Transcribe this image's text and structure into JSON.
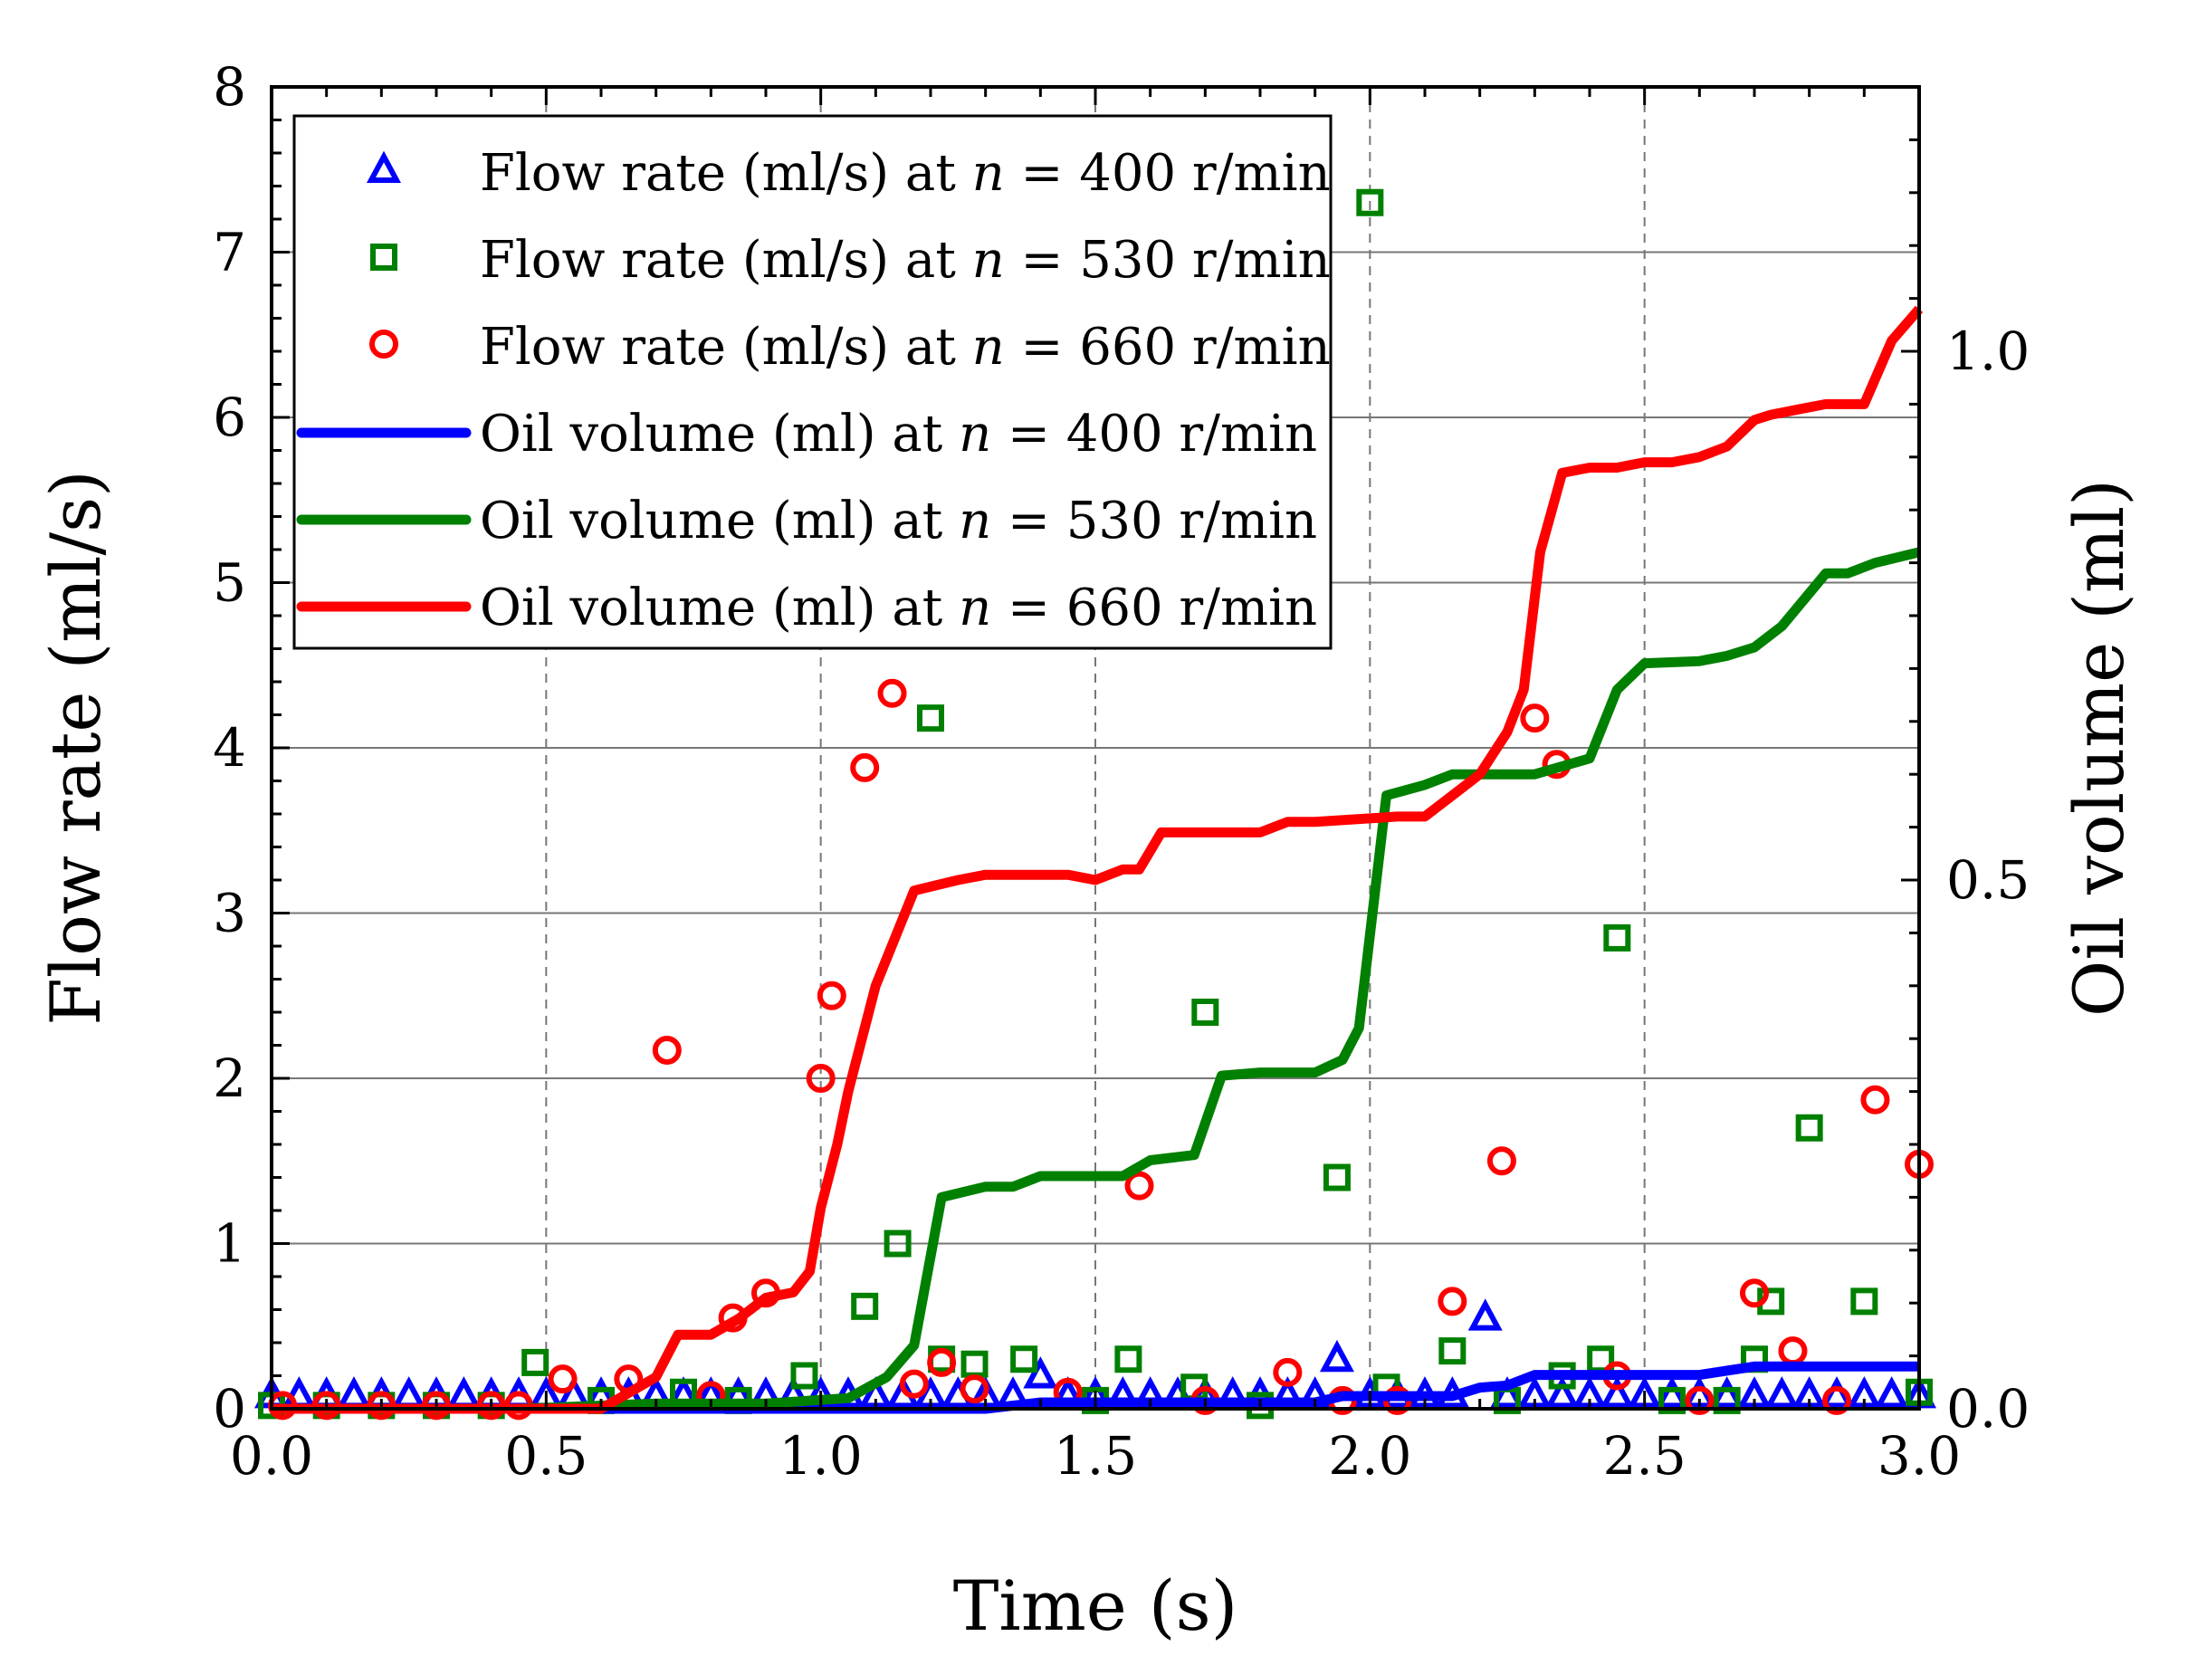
{
  "chart_data": {
    "type": "line",
    "title": "",
    "xlabel": "Time (s)",
    "ylabel": "Flow rate (ml/s)",
    "y2label": "Oil volume (ml)",
    "xlim": [
      0.0,
      3.0
    ],
    "ylim": [
      0,
      8
    ],
    "y2lim": [
      0.0,
      1.25
    ],
    "x_ticks": [
      0.0,
      0.5,
      1.0,
      1.5,
      2.0,
      2.5,
      3.0
    ],
    "x_tick_labels": [
      "0.0",
      "0.5",
      "1.0",
      "1.5",
      "2.0",
      "2.5",
      "3.0"
    ],
    "y_ticks": [
      0,
      1,
      2,
      3,
      4,
      5,
      6,
      7,
      8
    ],
    "y_tick_labels": [
      "0",
      "1",
      "2",
      "3",
      "4",
      "5",
      "6",
      "7",
      "8"
    ],
    "y2_ticks": [
      0.0,
      0.5,
      1.0
    ],
    "y2_tick_labels": [
      "0.0",
      "0.5",
      "1.0"
    ],
    "grid": "vertical dashed at x ticks, horizontal solid at y ticks",
    "legend_position": "top-left",
    "legend": [
      {
        "prefix": "Flow rate (ml/s) at ",
        "var": "n",
        "suffix": " = 400 r/min",
        "marker": "triangle",
        "color": "#0000ff"
      },
      {
        "prefix": "Flow rate (ml/s) at ",
        "var": "n",
        "suffix": " = 530 r/min",
        "marker": "square",
        "color": "#008000"
      },
      {
        "prefix": "Flow rate (ml/s) at ",
        "var": "n",
        "suffix": " = 660 r/min",
        "marker": "circle",
        "color": "#ff0000"
      },
      {
        "prefix": "Oil volume (ml) at ",
        "var": "n",
        "suffix": " = 400 r/min",
        "marker": "line",
        "color": "#0000ff"
      },
      {
        "prefix": "Oil volume (ml) at ",
        "var": "n",
        "suffix": " = 530 r/min",
        "marker": "line",
        "color": "#008000"
      },
      {
        "prefix": "Oil volume (ml) at ",
        "var": "n",
        "suffix": " = 660 r/min",
        "marker": "line",
        "color": "#ff0000"
      }
    ],
    "scatter_series": [
      {
        "name": "Flow rate (ml/s) at n = 400 r/min",
        "color": "#0000ff",
        "marker": "triangle",
        "x": [
          0.0,
          0.05,
          0.1,
          0.15,
          0.2,
          0.25,
          0.3,
          0.35,
          0.4,
          0.45,
          0.5,
          0.55,
          0.6,
          0.65,
          0.7,
          0.75,
          0.8,
          0.85,
          0.9,
          0.95,
          1.0,
          1.05,
          1.1,
          1.15,
          1.2,
          1.25,
          1.3,
          1.35,
          1.4,
          1.45,
          1.5,
          1.55,
          1.6,
          1.65,
          1.7,
          1.75,
          1.8,
          1.85,
          1.9,
          1.94,
          2.0,
          2.05,
          2.1,
          2.15,
          2.21,
          2.25,
          2.3,
          2.35,
          2.4,
          2.45,
          2.5,
          2.55,
          2.6,
          2.65,
          2.7,
          2.75,
          2.8,
          2.85,
          2.9,
          2.95,
          3.0
        ],
        "y": [
          0.08,
          0.08,
          0.08,
          0.08,
          0.08,
          0.08,
          0.08,
          0.08,
          0.08,
          0.08,
          0.08,
          0.08,
          0.08,
          0.08,
          0.08,
          0.08,
          0.08,
          0.08,
          0.08,
          0.08,
          0.08,
          0.08,
          0.08,
          0.08,
          0.08,
          0.08,
          0.08,
          0.08,
          0.2,
          0.08,
          0.08,
          0.08,
          0.08,
          0.08,
          0.08,
          0.08,
          0.08,
          0.08,
          0.08,
          0.3,
          0.08,
          0.08,
          0.08,
          0.08,
          0.55,
          0.08,
          0.08,
          0.08,
          0.08,
          0.08,
          0.08,
          0.08,
          0.08,
          0.08,
          0.08,
          0.08,
          0.08,
          0.08,
          0.08,
          0.08,
          0.08
        ]
      },
      {
        "name": "Flow rate (ml/s) at n = 530 r/min",
        "color": "#008000",
        "marker": "square",
        "x": [
          0.0,
          0.1,
          0.2,
          0.3,
          0.4,
          0.48,
          0.6,
          0.75,
          0.85,
          0.97,
          1.08,
          1.14,
          1.2,
          1.22,
          1.28,
          1.37,
          1.5,
          1.56,
          1.68,
          1.7,
          1.8,
          1.94,
          2.0,
          2.03,
          2.15,
          2.25,
          2.35,
          2.42,
          2.45,
          2.55,
          2.65,
          2.7,
          2.73,
          2.8,
          2.9,
          3.0
        ],
        "y": [
          0.02,
          0.02,
          0.02,
          0.02,
          0.02,
          0.28,
          0.05,
          0.1,
          0.05,
          0.2,
          0.62,
          1.0,
          4.18,
          0.3,
          0.27,
          0.3,
          0.05,
          0.3,
          0.13,
          2.4,
          0.02,
          1.4,
          7.3,
          0.13,
          0.35,
          0.05,
          0.2,
          0.3,
          2.85,
          0.05,
          0.05,
          0.3,
          0.65,
          1.7,
          0.65,
          0.1
        ]
      },
      {
        "name": "Flow rate (ml/s) at n = 660 r/min",
        "color": "#ff0000",
        "marker": "circle",
        "x": [
          0.02,
          0.1,
          0.2,
          0.3,
          0.4,
          0.45,
          0.53,
          0.65,
          0.72,
          0.8,
          0.84,
          0.9,
          1.0,
          1.02,
          1.08,
          1.13,
          1.17,
          1.22,
          1.28,
          1.45,
          1.58,
          1.7,
          1.85,
          1.95,
          2.05,
          2.15,
          2.24,
          2.3,
          2.34,
          2.45,
          2.6,
          2.7,
          2.77,
          2.85,
          2.92,
          3.0
        ],
        "y": [
          0.02,
          0.02,
          0.02,
          0.02,
          0.02,
          0.02,
          0.18,
          0.18,
          2.17,
          0.08,
          0.55,
          0.7,
          2.0,
          2.5,
          3.88,
          4.33,
          0.15,
          0.28,
          0.12,
          0.1,
          1.35,
          0.05,
          0.22,
          0.05,
          0.05,
          0.65,
          1.5,
          4.18,
          3.9,
          0.2,
          0.05,
          0.7,
          0.35,
          0.05,
          1.87,
          1.48
        ]
      }
    ],
    "line_series": [
      {
        "name": "Oil volume (ml) at n = 400 r/min",
        "color": "#0000ff",
        "axis": "right",
        "x": [
          0.0,
          0.6,
          1.0,
          1.3,
          1.4,
          1.8,
          1.9,
          1.95,
          2.15,
          2.2,
          2.25,
          2.3,
          2.6,
          2.7,
          3.0
        ],
        "y": [
          0.0,
          0.0,
          0.0,
          0.0,
          0.006,
          0.006,
          0.006,
          0.012,
          0.012,
          0.02,
          0.022,
          0.032,
          0.032,
          0.04,
          0.04
        ]
      },
      {
        "name": "Oil volume (ml) at n = 530 r/min",
        "color": "#008000",
        "axis": "right",
        "x": [
          0.0,
          0.45,
          0.7,
          0.9,
          1.05,
          1.12,
          1.17,
          1.22,
          1.3,
          1.35,
          1.4,
          1.55,
          1.6,
          1.68,
          1.73,
          1.8,
          1.9,
          1.95,
          1.98,
          2.03,
          2.1,
          2.15,
          2.25,
          2.3,
          2.4,
          2.45,
          2.5,
          2.6,
          2.65,
          2.7,
          2.75,
          2.83,
          2.87,
          2.92,
          3.0
        ],
        "y": [
          0.0,
          0.0,
          0.005,
          0.005,
          0.01,
          0.03,
          0.06,
          0.2,
          0.21,
          0.21,
          0.22,
          0.22,
          0.235,
          0.24,
          0.315,
          0.318,
          0.318,
          0.33,
          0.36,
          0.58,
          0.59,
          0.6,
          0.6,
          0.6,
          0.615,
          0.68,
          0.705,
          0.707,
          0.712,
          0.72,
          0.74,
          0.79,
          0.79,
          0.8,
          0.81
        ]
      },
      {
        "name": "Oil volume (ml) at n = 660 r/min",
        "color": "#ff0000",
        "axis": "right",
        "x": [
          0.0,
          0.6,
          0.7,
          0.74,
          0.8,
          0.85,
          0.9,
          0.95,
          0.98,
          1.0,
          1.03,
          1.05,
          1.1,
          1.17,
          1.25,
          1.3,
          1.45,
          1.5,
          1.55,
          1.58,
          1.62,
          1.8,
          1.85,
          1.9,
          2.05,
          2.1,
          2.15,
          2.2,
          2.25,
          2.28,
          2.31,
          2.35,
          2.4,
          2.45,
          2.5,
          2.55,
          2.6,
          2.65,
          2.7,
          2.73,
          2.78,
          2.83,
          2.9,
          2.95,
          3.0
        ],
        "y": [
          0.0,
          0.0,
          0.03,
          0.07,
          0.07,
          0.085,
          0.105,
          0.11,
          0.13,
          0.19,
          0.25,
          0.3,
          0.4,
          0.49,
          0.5,
          0.505,
          0.505,
          0.5,
          0.51,
          0.51,
          0.545,
          0.545,
          0.555,
          0.555,
          0.56,
          0.56,
          0.58,
          0.6,
          0.64,
          0.68,
          0.81,
          0.885,
          0.89,
          0.89,
          0.895,
          0.895,
          0.9,
          0.91,
          0.935,
          0.94,
          0.945,
          0.95,
          0.95,
          1.01,
          1.04
        ]
      }
    ]
  }
}
